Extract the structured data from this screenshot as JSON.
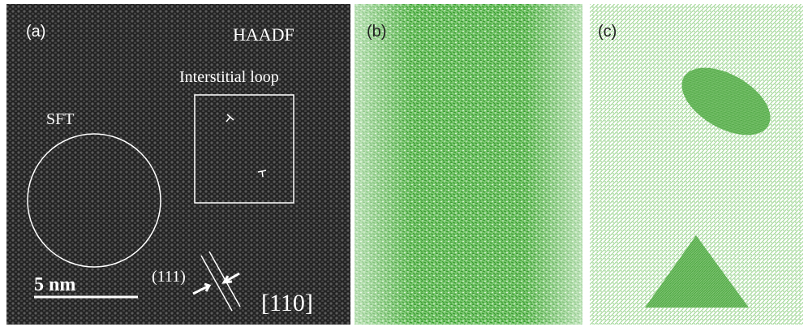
{
  "panels": [
    {
      "label": "(a)",
      "title": "HAADF",
      "annotations": [
        "Interstitial loop",
        "SFT",
        "(111)",
        "[110]"
      ],
      "scale_bar": "5 nm"
    },
    {
      "label": "(b)"
    },
    {
      "label": "(c)"
    }
  ]
}
